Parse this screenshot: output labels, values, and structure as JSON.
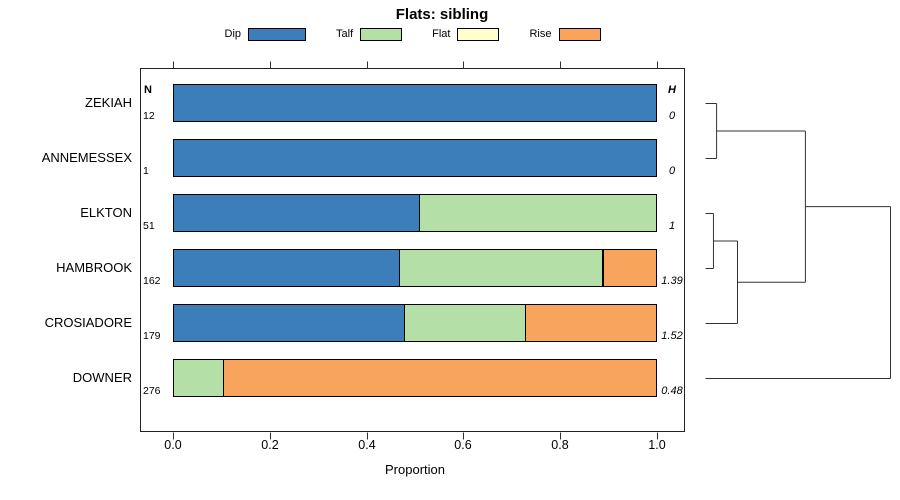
{
  "chart_data": {
    "type": "bar",
    "stacked": true,
    "orientation": "horizontal",
    "title": "Flats: sibling",
    "xlabel": "Proportion",
    "xlim": [
      0,
      1
    ],
    "xticks": [
      "0.0",
      "0.2",
      "0.4",
      "0.6",
      "0.8",
      "1.0"
    ],
    "grid": false,
    "legend_position": "top-center",
    "left_header": "N",
    "right_header": "H",
    "series": [
      {
        "name": "Dip",
        "color": "#3B7EB9"
      },
      {
        "name": "Talf",
        "color": "#B4DFA6"
      },
      {
        "name": "Flat",
        "color": "#FFFFCC"
      },
      {
        "name": "Rise",
        "color": "#F9A45C"
      }
    ],
    "rows": [
      {
        "label": "ZEKIAH",
        "n": "12",
        "h": "0",
        "values": [
          1,
          0,
          0,
          0
        ]
      },
      {
        "label": "ANNEMESSEX",
        "n": "1",
        "h": "0",
        "values": [
          1,
          0,
          0,
          0
        ]
      },
      {
        "label": "ELKTON",
        "n": "51",
        "h": "1",
        "values": [
          0.51,
          0.49,
          0,
          0
        ]
      },
      {
        "label": "HAMBROOK",
        "n": "162",
        "h": "1.39",
        "values": [
          0.47,
          0.42,
          0,
          0.11
        ]
      },
      {
        "label": "CROSIADORE",
        "n": "179",
        "h": "1.52",
        "values": [
          0.48,
          0.25,
          0,
          0.27
        ]
      },
      {
        "label": "DOWNER",
        "n": "276",
        "h": "0.48",
        "values": [
          0,
          0.105,
          0,
          0.895
        ]
      }
    ],
    "dendrogram": {
      "merges": [
        {
          "left": {
            "leaf": 0
          },
          "right": {
            "leaf": 1
          },
          "x": 0.06
        },
        {
          "left": {
            "leaf": 2
          },
          "right": {
            "leaf": 3
          },
          "x": 0.043
        },
        {
          "left": {
            "merge": 1
          },
          "right": {
            "leaf": 4
          },
          "x": 0.173
        },
        {
          "left": {
            "merge": 0
          },
          "right": {
            "merge": 2
          },
          "x": 0.54
        },
        {
          "left": {
            "merge": 3
          },
          "right": {
            "leaf": 5
          },
          "x": 1.0
        }
      ]
    }
  }
}
